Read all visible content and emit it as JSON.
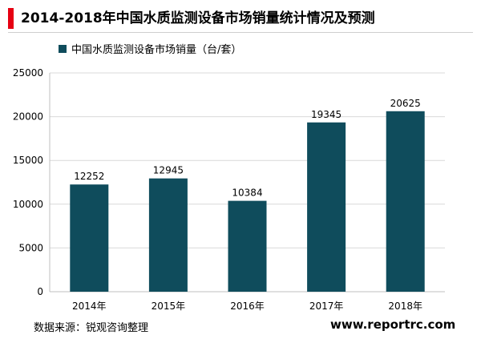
{
  "title": "2014-2018年中国水质监测设备市场销量统计情况及预测",
  "source": "数据来源：锐观咨询整理",
  "website": "www.reportrc.com",
  "colors": {
    "accent": "#e60012",
    "bar": "#0f4c5c",
    "grid": "#d9d9d9"
  },
  "chart_data": {
    "type": "bar",
    "categories": [
      "2014年",
      "2015年",
      "2016年",
      "2017年",
      "2018年"
    ],
    "series": [
      {
        "name": "中国水质监测设备市场销量（台/套）",
        "values": [
          12252,
          12945,
          10384,
          19345,
          20625
        ]
      }
    ],
    "value_labels": [
      "12252",
      "12945",
      "10384",
      "19345",
      "20625"
    ],
    "yticks": [
      "0",
      "5000",
      "10000",
      "15000",
      "20000",
      "25000"
    ],
    "ylim": [
      0,
      25000
    ],
    "grid": true,
    "legend_position": "top-left"
  }
}
